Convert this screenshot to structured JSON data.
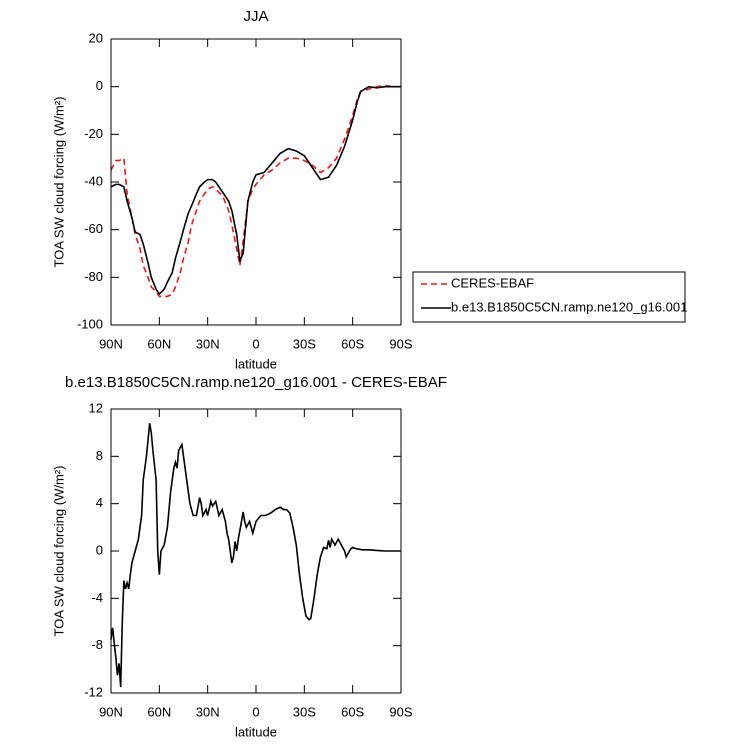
{
  "chart_data": [
    {
      "type": "line",
      "title": "JJA",
      "x_label": "latitude",
      "y_label": "TOA SW cloud forcing (W/m²)",
      "x": [
        90,
        87,
        85,
        82,
        80,
        77,
        75,
        72,
        70,
        67,
        65,
        62,
        60,
        57,
        55,
        52,
        50,
        47,
        45,
        42,
        40,
        37,
        35,
        32,
        30,
        27,
        25,
        22,
        20,
        17,
        15,
        12,
        10,
        8,
        5,
        2,
        0,
        -5,
        -10,
        -15,
        -20,
        -25,
        -30,
        -35,
        -40,
        -45,
        -50,
        -55,
        -60,
        -63,
        -65,
        -70,
        -75,
        -80,
        -85,
        -90
      ],
      "series": [
        {
          "name": "CERES-EBAF",
          "color": "#e41a1c",
          "line_style": "dashed",
          "values": [
            -35,
            -31,
            -31,
            -30,
            -45,
            -55,
            -62,
            -68,
            -75,
            -80,
            -84,
            -86,
            -88,
            -88,
            -88,
            -87,
            -84,
            -78,
            -72,
            -65,
            -58,
            -52,
            -48,
            -45,
            -43,
            -42,
            -43,
            -45,
            -47,
            -52,
            -58,
            -68,
            -75,
            -65,
            -48,
            -43,
            -41,
            -37,
            -35,
            -32,
            -30,
            -30,
            -31,
            -33,
            -36,
            -34,
            -30,
            -22,
            -12,
            -5,
            -2,
            -1,
            0,
            0.5,
            0,
            0
          ]
        },
        {
          "name": "b.e13.B1850C5CN.ramp.ne120_g16.001",
          "color": "#000000",
          "line_style": "solid",
          "values": [
            -42,
            -41,
            -41,
            -42,
            -48,
            -55,
            -61,
            -62,
            -66,
            -74,
            -80,
            -85,
            -87,
            -85,
            -82,
            -78,
            -72,
            -65,
            -60,
            -53,
            -50,
            -45,
            -42,
            -40,
            -39,
            -39,
            -40,
            -43,
            -45,
            -48,
            -52,
            -62,
            -73,
            -70,
            -48,
            -40,
            -37,
            -36,
            -32,
            -28,
            -26,
            -27,
            -29,
            -34,
            -39,
            -38,
            -33,
            -25,
            -14,
            -6,
            -2,
            0,
            -0.5,
            0,
            0,
            0
          ]
        }
      ],
      "xlim": [
        90,
        -90
      ],
      "xticks": [
        {
          "value": 90,
          "label": "90N"
        },
        {
          "value": 60,
          "label": "60N"
        },
        {
          "value": 30,
          "label": "30N"
        },
        0,
        {
          "value": -30,
          "label": "30S"
        },
        {
          "value": -60,
          "label": "60S"
        },
        {
          "value": -90,
          "label": "90S"
        }
      ],
      "ylim": [
        -100,
        20
      ],
      "yticks": [
        20,
        0,
        -20,
        -40,
        -60,
        -80,
        -100
      ],
      "legend": "right"
    },
    {
      "type": "line",
      "title": "b.e13.B1850C5CN.ramp.ne120_g16.001 - CERES-EBAF",
      "x_label": "latitude",
      "y_label": "TOA SW cloud forcing (W/m²)",
      "x": [
        90,
        89,
        87,
        86,
        85,
        84,
        83,
        82,
        81,
        80,
        79,
        78,
        77,
        75,
        73,
        71,
        70,
        68,
        66,
        65,
        64,
        62,
        61,
        60,
        59,
        57,
        55,
        53,
        51,
        50,
        49,
        48,
        46,
        45,
        43,
        41,
        39,
        37,
        35,
        34,
        33,
        31,
        30,
        28,
        27,
        25,
        23,
        21,
        19,
        18,
        17,
        15,
        14,
        13,
        12,
        11,
        9,
        8,
        7,
        6,
        4,
        2,
        0,
        -3,
        -6,
        -9,
        -12,
        -15,
        -17,
        -19,
        -21,
        -23,
        -25,
        -27,
        -29,
        -31,
        -33,
        -34,
        -36,
        -38,
        -40,
        -42,
        -44,
        -45,
        -46,
        -47,
        -49,
        -51,
        -53,
        -55,
        -56,
        -58,
        -59,
        -60,
        -62,
        -66,
        -70,
        -75,
        -80,
        -85,
        -90
      ],
      "series": [
        {
          "name": "b.e13.B1850C5CN.ramp.ne120_g16.001 - CERES-EBAF",
          "color": "#000000",
          "line_style": "solid",
          "values": [
            -7.5,
            -6.5,
            -9,
            -10.5,
            -9.5,
            -11.5,
            -6,
            -2.5,
            -3.2,
            -2.7,
            -3.2,
            -2,
            -1,
            0,
            1,
            3,
            6,
            8,
            10.8,
            10,
            8.5,
            6,
            0,
            -2,
            0,
            0.5,
            2,
            5,
            7,
            7.5,
            7,
            8.5,
            9,
            8,
            6,
            4,
            3,
            3,
            4.5,
            4,
            3,
            3.5,
            3,
            4.2,
            3.8,
            4.2,
            3,
            3.5,
            2.5,
            1.5,
            1,
            -1,
            -0.5,
            0.8,
            0,
            1,
            2.5,
            3.3,
            2.5,
            2,
            2.5,
            1.5,
            2.5,
            3,
            3,
            3.2,
            3.5,
            3.7,
            3.5,
            3.5,
            3.2,
            2,
            0.5,
            -2,
            -4,
            -5.5,
            -5.8,
            -5.7,
            -4,
            -2,
            -0.5,
            0.3,
            0.2,
            0.9,
            0.3,
            1,
            0.5,
            1,
            0.5,
            0,
            -0.5,
            0,
            0.2,
            0.3,
            0.2,
            0.1,
            0.1,
            0.05,
            0,
            0,
            0
          ]
        }
      ],
      "xlim": [
        90,
        -90
      ],
      "xticks": [
        {
          "value": 90,
          "label": "90N"
        },
        {
          "value": 60,
          "label": "60N"
        },
        {
          "value": 30,
          "label": "30N"
        },
        0,
        {
          "value": -30,
          "label": "30S"
        },
        {
          "value": -60,
          "label": "60S"
        },
        {
          "value": -90,
          "label": "90S"
        }
      ],
      "ylim": [
        -12,
        12
      ],
      "yticks": [
        12,
        8,
        4,
        0,
        -4,
        -8,
        -12
      ]
    }
  ]
}
